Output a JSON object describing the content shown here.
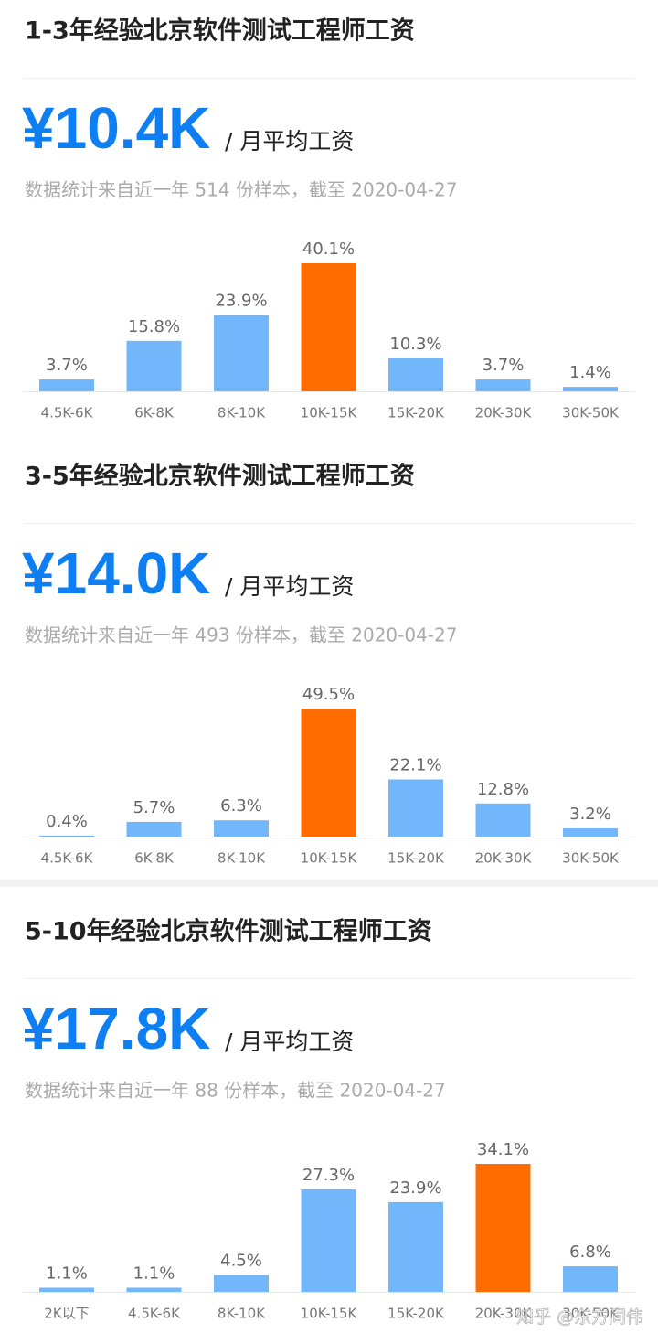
{
  "chart_data": [
    {
      "type": "bar",
      "title": "1-3年经验北京软件测试工程师工资",
      "price": "¥10.4K",
      "price_suffix": "/ 月平均工资",
      "note": "数据统计来自近一年 514 份样本，截至 2020-04-27",
      "categories": [
        "4.5K-6K",
        "6K-8K",
        "8K-10K",
        "10K-15K",
        "15K-20K",
        "20K-30K",
        "30K-50K"
      ],
      "values": [
        3.7,
        15.8,
        23.9,
        40.1,
        10.3,
        3.7,
        1.4
      ],
      "value_labels": [
        "3.7%",
        "15.8%",
        "23.9%",
        "40.1%",
        "10.3%",
        "3.7%",
        "1.4%"
      ],
      "colors": [
        "#72b6fb",
        "#72b6fb",
        "#72b6fb",
        "#ff6c00",
        "#72b6fb",
        "#72b6fb",
        "#72b6fb"
      ]
    },
    {
      "type": "bar",
      "title": "3-5年经验北京软件测试工程师工资",
      "price": "¥14.0K",
      "price_suffix": "/ 月平均工资",
      "note": "数据统计来自近一年 493 份样本，截至 2020-04-27",
      "categories": [
        "4.5K-6K",
        "6K-8K",
        "8K-10K",
        "10K-15K",
        "15K-20K",
        "20K-30K",
        "30K-50K"
      ],
      "values": [
        0.4,
        5.7,
        6.3,
        49.5,
        22.1,
        12.8,
        3.2
      ],
      "value_labels": [
        "0.4%",
        "5.7%",
        "6.3%",
        "49.5%",
        "22.1%",
        "12.8%",
        "3.2%"
      ],
      "colors": [
        "#72b6fb",
        "#72b6fb",
        "#72b6fb",
        "#ff6c00",
        "#72b6fb",
        "#72b6fb",
        "#72b6fb"
      ]
    },
    {
      "type": "bar",
      "title": "5-10年经验北京软件测试工程师工资",
      "price": "¥17.8K",
      "price_suffix": "/ 月平均工资",
      "note": "数据统计来自近一年 88 份样本，截至 2020-04-27",
      "categories": [
        "2K以下",
        "4.5K-6K",
        "8K-10K",
        "10K-15K",
        "15K-20K",
        "20K-30K",
        "30K-50K"
      ],
      "values": [
        1.1,
        1.1,
        4.5,
        27.3,
        23.9,
        34.1,
        6.8
      ],
      "value_labels": [
        "1.1%",
        "1.1%",
        "4.5%",
        "27.3%",
        "23.9%",
        "34.1%",
        "6.8%"
      ],
      "colors": [
        "#72b6fb",
        "#72b6fb",
        "#72b6fb",
        "#72b6fb",
        "#72b6fb",
        "#ff6c00",
        "#72b6fb"
      ]
    }
  ],
  "watermark": "知乎 @东方同伟"
}
